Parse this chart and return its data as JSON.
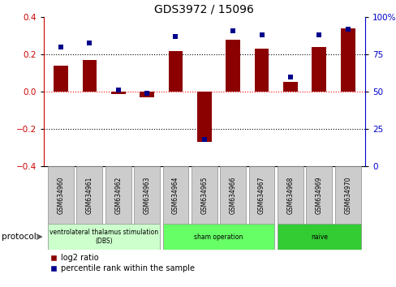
{
  "title": "GDS3972 / 15096",
  "samples": [
    "GSM634960",
    "GSM634961",
    "GSM634962",
    "GSM634963",
    "GSM634964",
    "GSM634965",
    "GSM634966",
    "GSM634967",
    "GSM634968",
    "GSM634969",
    "GSM634970"
  ],
  "log2_ratio": [
    0.14,
    0.17,
    -0.01,
    -0.03,
    0.22,
    -0.27,
    0.28,
    0.23,
    0.055,
    0.24,
    0.34
  ],
  "percentile_rank": [
    80,
    83,
    51,
    49,
    87,
    18,
    91,
    88,
    60,
    88,
    92
  ],
  "bar_color": "#8B0000",
  "dot_color": "#00008B",
  "ylim_left": [
    -0.4,
    0.4
  ],
  "ylim_right": [
    0,
    100
  ],
  "yticks_left": [
    -0.4,
    -0.2,
    0.0,
    0.2,
    0.4
  ],
  "yticks_right": [
    0,
    25,
    50,
    75,
    100
  ],
  "ytick_right_labels": [
    "0",
    "25",
    "50",
    "75",
    "100%"
  ],
  "protocol_label": "protocol",
  "legend_bar_label": "log2 ratio",
  "legend_dot_label": "percentile rank within the sample",
  "left_axis_color": "#CC0000",
  "right_axis_color": "#0000CC",
  "protocol_groups": [
    {
      "label": "ventrolateral thalamus stimulation\n(DBS)",
      "start": 0,
      "end": 3,
      "color": "#CCFFCC"
    },
    {
      "label": "sham operation",
      "start": 4,
      "end": 7,
      "color": "#66FF66"
    },
    {
      "label": "naive",
      "start": 8,
      "end": 10,
      "color": "#33CC33"
    }
  ],
  "sample_box_color": "#CCCCCC",
  "bar_width": 0.5
}
